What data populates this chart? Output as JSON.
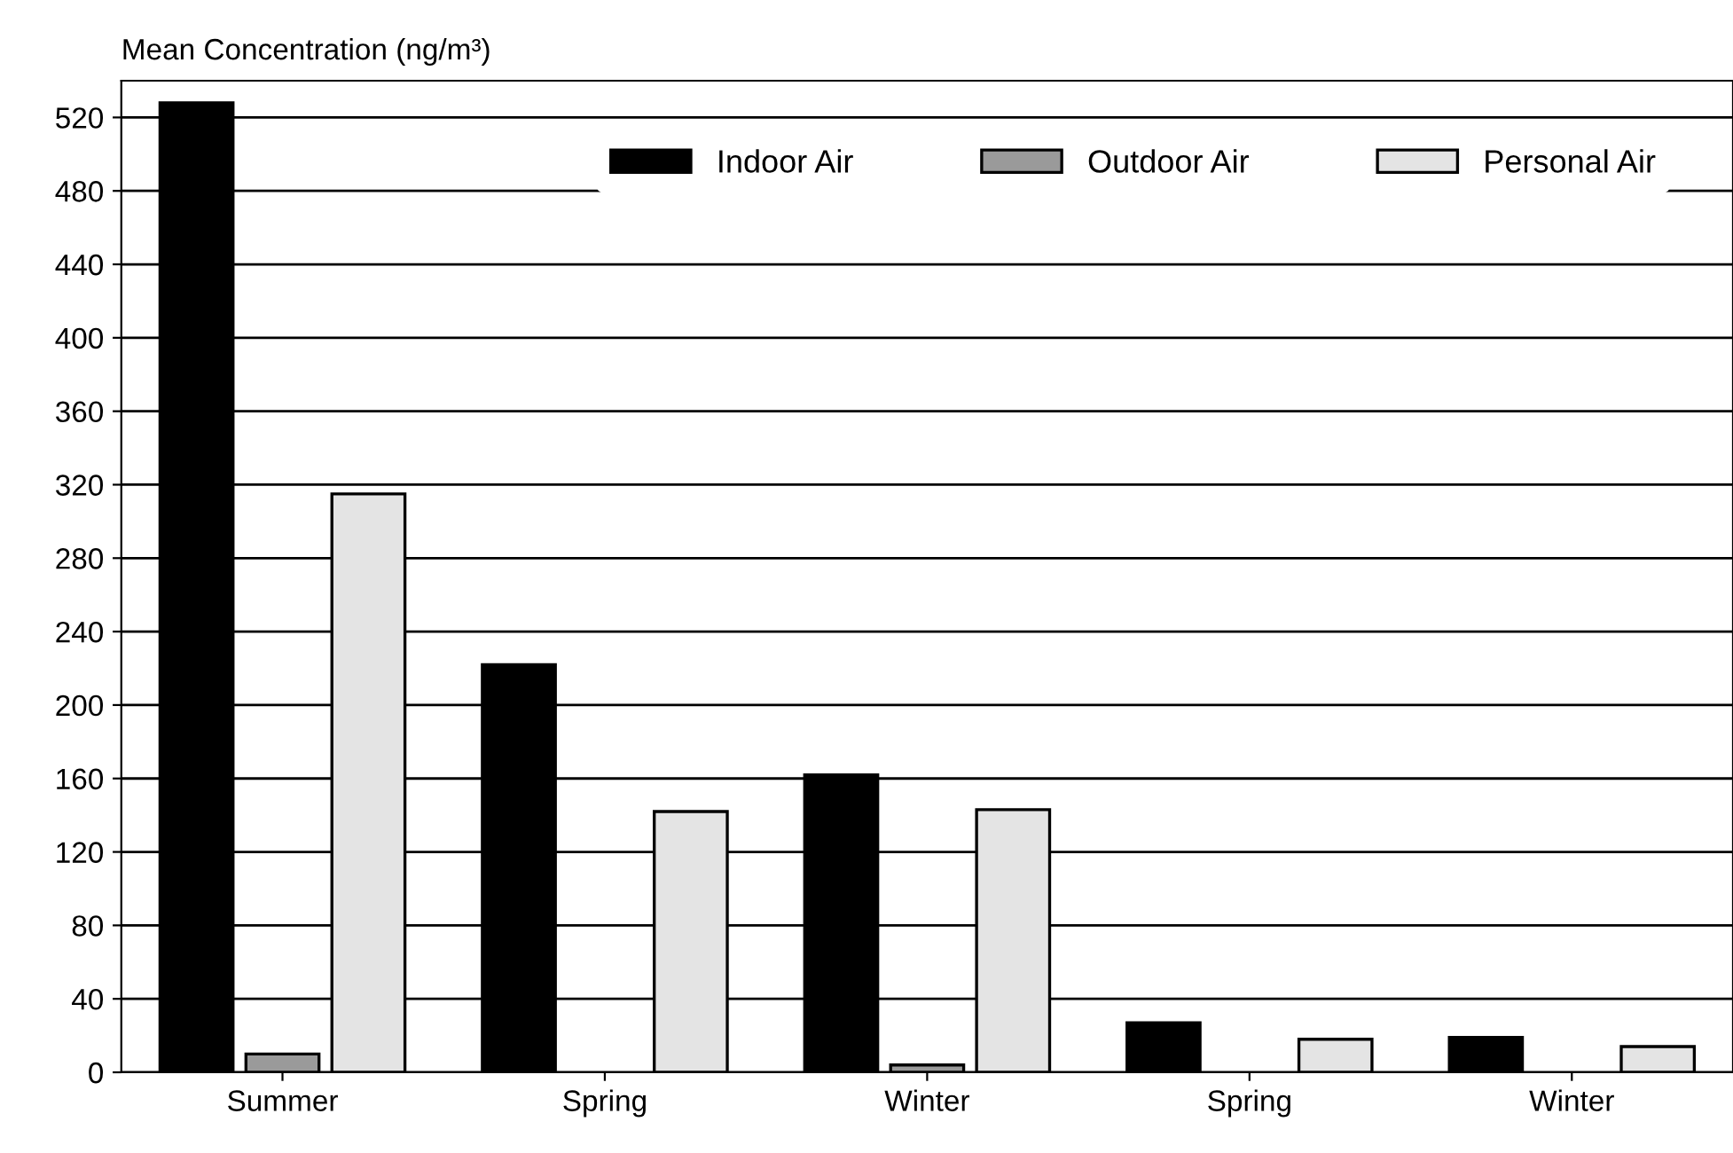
{
  "chart_data": {
    "type": "bar",
    "ylabel": "Mean Concentration (ng/m³)",
    "categories": [
      "Summer",
      "Spring",
      "Winter",
      "Spring",
      "Winter"
    ],
    "series": [
      {
        "name": "Indoor Air",
        "color": "#000000",
        "values": [
          528,
          222,
          162,
          27,
          19
        ]
      },
      {
        "name": "Outdoor Air",
        "color": "#9a9a9a",
        "values": [
          10,
          null,
          4,
          null,
          null
        ]
      },
      {
        "name": "Personal Air",
        "color": "#e4e4e4",
        "values": [
          315,
          142,
          143,
          18,
          14
        ]
      }
    ],
    "ylim": [
      0,
      540
    ],
    "yticks": [
      0,
      40,
      80,
      120,
      160,
      200,
      240,
      280,
      320,
      360,
      400,
      440,
      480,
      520
    ],
    "grid": "y",
    "legend": "top right"
  }
}
